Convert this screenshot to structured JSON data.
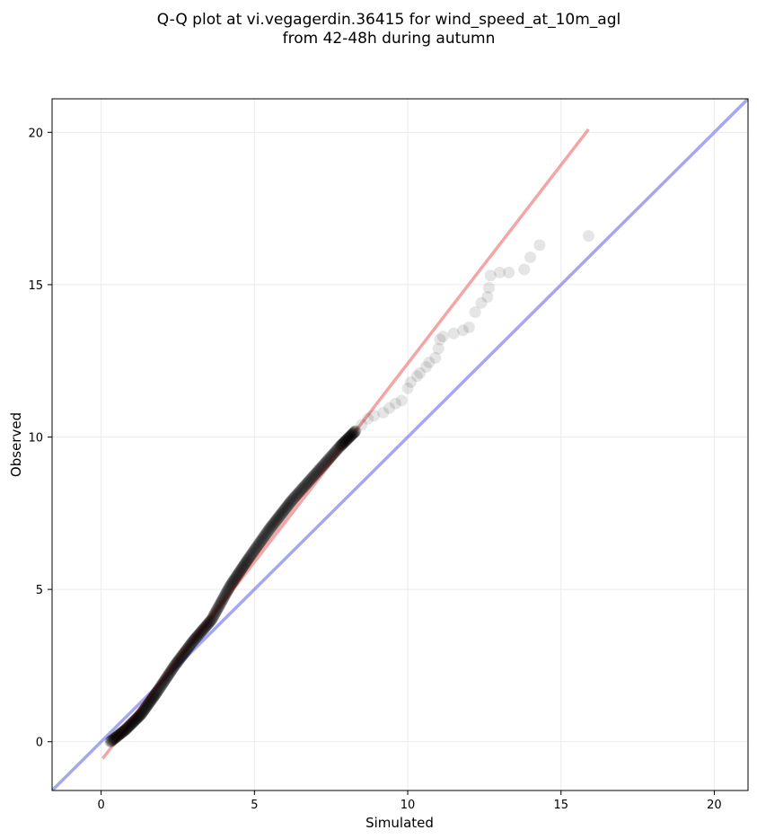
{
  "chart_data": {
    "type": "scatter",
    "title_lines": [
      "Q-Q plot at vi.vegagerdin.36415 for wind_speed_at_10m_agl",
      "from 42-48h during autumn"
    ],
    "xlabel": "Simulated",
    "ylabel": "Observed",
    "xlim": [
      -1.6,
      21.1
    ],
    "ylim": [
      -1.6,
      21.1
    ],
    "xticks": [
      0,
      5,
      10,
      15,
      20
    ],
    "yticks": [
      0,
      5,
      10,
      15,
      20
    ],
    "grid": true,
    "colors": {
      "points": "#000000",
      "identity_line": "#8888ee",
      "fit_line": "#f08080"
    },
    "identity_line": {
      "x": [
        -1.6,
        21.1
      ],
      "y": [
        -1.6,
        21.1
      ]
    },
    "fit_line": {
      "x": [
        0.05,
        15.9
      ],
      "y": [
        -0.55,
        20.1
      ]
    },
    "dense_segments": [
      [
        [
          0.3,
          0.0
        ],
        [
          0.8,
          0.4
        ],
        [
          1.3,
          0.9
        ],
        [
          1.8,
          1.6
        ],
        [
          2.4,
          2.5
        ],
        [
          3.0,
          3.3
        ],
        [
          3.6,
          4.0
        ],
        [
          4.2,
          5.1
        ],
        [
          4.8,
          6.0
        ],
        [
          5.5,
          7.0
        ],
        [
          6.2,
          7.9
        ],
        [
          7.0,
          8.8
        ],
        [
          7.8,
          9.7
        ],
        [
          8.3,
          10.2
        ]
      ]
    ],
    "sparse_points": [
      [
        8.5,
        10.4
      ],
      [
        8.7,
        10.6
      ],
      [
        8.9,
        10.7
      ],
      [
        9.2,
        10.8
      ],
      [
        9.4,
        10.95
      ],
      [
        9.6,
        11.1
      ],
      [
        9.8,
        11.2
      ],
      [
        10.0,
        11.6
      ],
      [
        10.1,
        11.8
      ],
      [
        10.3,
        12.0
      ],
      [
        10.4,
        12.1
      ],
      [
        10.6,
        12.3
      ],
      [
        10.7,
        12.45
      ],
      [
        10.9,
        12.6
      ],
      [
        11.0,
        12.9
      ],
      [
        11.05,
        13.2
      ],
      [
        11.15,
        13.3
      ],
      [
        11.5,
        13.4
      ],
      [
        11.8,
        13.5
      ],
      [
        12.0,
        13.6
      ],
      [
        12.2,
        14.1
      ],
      [
        12.4,
        14.4
      ],
      [
        12.6,
        14.6
      ],
      [
        12.65,
        14.9
      ],
      [
        12.7,
        15.3
      ],
      [
        13.0,
        15.4
      ],
      [
        13.3,
        15.4
      ],
      [
        13.8,
        15.5
      ],
      [
        14.0,
        15.9
      ],
      [
        14.3,
        16.3
      ],
      [
        15.9,
        16.6
      ]
    ]
  }
}
